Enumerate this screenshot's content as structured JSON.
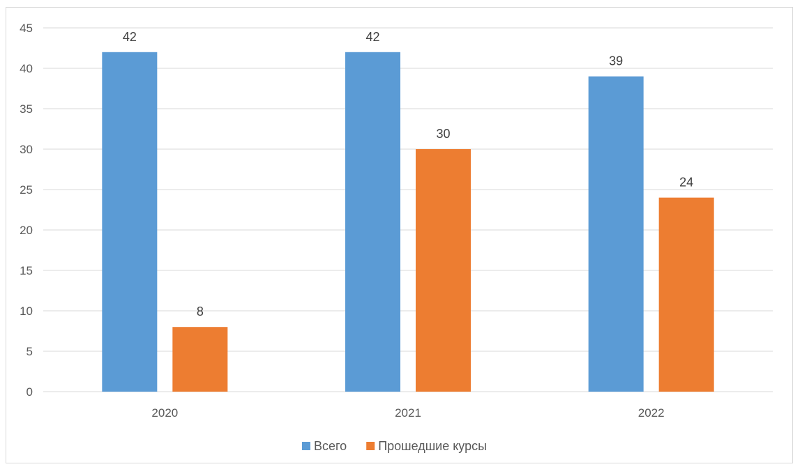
{
  "chart_data": {
    "type": "bar",
    "categories": [
      "2020",
      "2021",
      "2022"
    ],
    "series": [
      {
        "name": "Всего",
        "values": [
          42,
          42,
          39
        ],
        "color": "#5b9bd5"
      },
      {
        "name": "Прошедшие курсы",
        "values": [
          8,
          30,
          24
        ],
        "color": "#ed7d31"
      }
    ],
    "ylim": [
      0,
      45
    ],
    "yticks": [
      0,
      5,
      10,
      15,
      20,
      25,
      30,
      35,
      40,
      45
    ],
    "grid": true,
    "legend": "bottom"
  }
}
